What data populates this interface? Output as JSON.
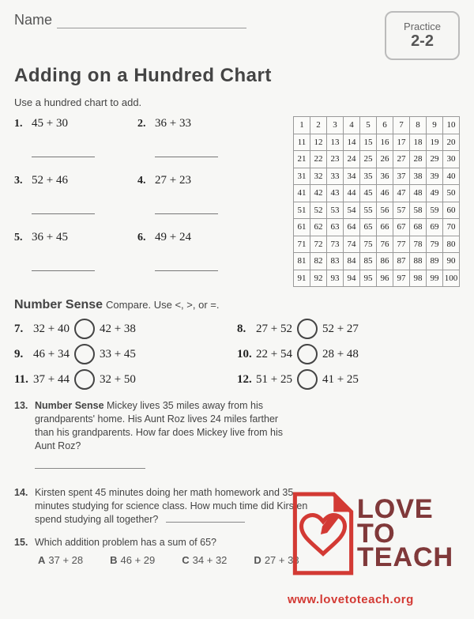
{
  "header": {
    "name_label": "Name",
    "practice_label": "Practice",
    "practice_number": "2-2"
  },
  "title": "Adding on a Hundred Chart",
  "instruction": "Use a hundred chart to add.",
  "problems": [
    {
      "num": "1.",
      "expr": "45 + 30"
    },
    {
      "num": "2.",
      "expr": "36 + 33"
    },
    {
      "num": "3.",
      "expr": "52 + 46"
    },
    {
      "num": "4.",
      "expr": "27 + 23"
    },
    {
      "num": "5.",
      "expr": "36 + 45"
    },
    {
      "num": "6.",
      "expr": "49 + 24"
    }
  ],
  "number_sense": {
    "title": "Number Sense",
    "instruction": "Compare. Use <, >, or =."
  },
  "compare": [
    {
      "num": "7.",
      "left": "32 + 40",
      "right": "42 + 38"
    },
    {
      "num": "8.",
      "left": "27 + 52",
      "right": "52 + 27"
    },
    {
      "num": "9.",
      "left": "46 + 34",
      "right": "33 + 45"
    },
    {
      "num": "10.",
      "left": "22 + 54",
      "right": "28 + 48"
    },
    {
      "num": "11.",
      "left": "37 + 44",
      "right": "32 + 50"
    },
    {
      "num": "12.",
      "left": "51 + 25",
      "right": "41 + 25"
    }
  ],
  "word_problems": {
    "p13_num": "13.",
    "p13_title": "Number Sense",
    "p13_text": "Mickey lives 35 miles away from his grandparents' home. His Aunt Roz lives 24 miles farther than his grandparents. How far does Mickey live from his Aunt Roz?",
    "p14_num": "14.",
    "p14_text": "Kirsten spent 45 minutes doing her math homework and 35 minutes studying for science class. How much time did Kirsten spend studying all together?",
    "p15_num": "15.",
    "p15_text": "Which addition problem has a sum of 65?",
    "p15_options": [
      {
        "letter": "A",
        "expr": "37 + 28"
      },
      {
        "letter": "B",
        "expr": "46 + 29"
      },
      {
        "letter": "C",
        "expr": "34 + 32"
      },
      {
        "letter": "D",
        "expr": "27 + 33"
      }
    ]
  },
  "watermark": {
    "line1": "LOVE",
    "line2": "TO",
    "line3": "TEACH",
    "url": "www.lovetoteach.org",
    "brand_color": "#80393a",
    "url_color": "#d33a34",
    "icon_red": "#d33a34",
    "icon_white": "#ffffff"
  },
  "chart": {
    "rows": 10,
    "cols": 10,
    "cell_border": "#999999",
    "cell_bg": "#fbfbf9",
    "font_size": 11
  },
  "colors": {
    "page_bg": "#f7f7f5",
    "text": "#222222",
    "heading": "#444444",
    "line": "#888888"
  }
}
